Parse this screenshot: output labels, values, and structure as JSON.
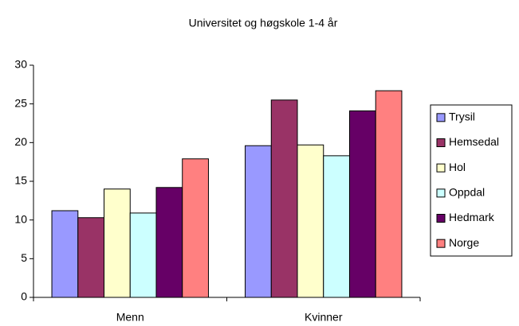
{
  "chart_data": {
    "type": "bar",
    "title": "Universitet og høgskole 1-4 år",
    "categories": [
      "Menn",
      "Kvinner"
    ],
    "series": [
      {
        "name": "Trysil",
        "color": "#9999ff",
        "values": [
          11.2,
          19.6
        ]
      },
      {
        "name": "Hemsedal",
        "color": "#993366",
        "values": [
          10.3,
          25.5
        ]
      },
      {
        "name": "Hol",
        "color": "#ffffcc",
        "values": [
          14.0,
          19.7
        ]
      },
      {
        "name": "Oppdal",
        "color": "#ccffff",
        "values": [
          10.9,
          18.3
        ]
      },
      {
        "name": "Hedmark",
        "color": "#660066",
        "values": [
          14.2,
          24.1
        ]
      },
      {
        "name": "Norge",
        "color": "#ff8080",
        "values": [
          17.9,
          26.7
        ]
      }
    ],
    "ylim": [
      0,
      30
    ],
    "yticks": [
      0,
      5,
      10,
      15,
      20,
      25,
      30
    ],
    "grid": false,
    "legend": "right"
  }
}
